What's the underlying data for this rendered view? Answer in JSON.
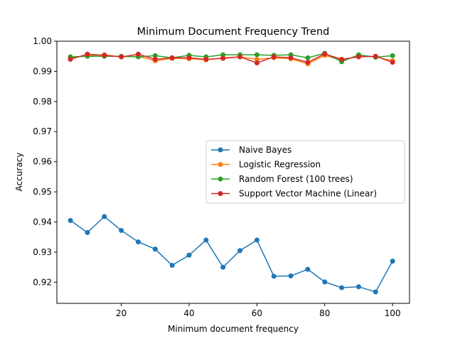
{
  "chart_data": {
    "type": "line",
    "title": "Minimum Document Frequency Trend",
    "xlabel": "Minimum document frequency",
    "ylabel": "Accuracy",
    "xlim": [
      1,
      105
    ],
    "ylim": [
      0.913,
      1.0
    ],
    "xticks": [
      20,
      40,
      60,
      80,
      100
    ],
    "yticks": [
      0.92,
      0.93,
      0.94,
      0.95,
      0.96,
      0.97,
      0.98,
      0.99,
      1.0
    ],
    "xtick_labels": [
      "20",
      "40",
      "60",
      "80",
      "100"
    ],
    "ytick_labels": [
      "0.92",
      "0.93",
      "0.94",
      "0.95",
      "0.96",
      "0.97",
      "0.98",
      "0.99",
      "1.00"
    ],
    "grid": false,
    "legend_position": "center-right",
    "x": [
      5,
      10,
      15,
      20,
      25,
      30,
      35,
      40,
      45,
      50,
      55,
      60,
      65,
      70,
      75,
      80,
      85,
      90,
      95,
      100
    ],
    "series": [
      {
        "name": "Naive Bayes",
        "color": "#1f77b4",
        "values": [
          0.9405,
          0.9365,
          0.9418,
          0.9372,
          0.9334,
          0.931,
          0.9256,
          0.929,
          0.934,
          0.925,
          0.9305,
          0.934,
          0.922,
          0.9221,
          0.9243,
          0.9201,
          0.9182,
          0.9185,
          0.9168,
          0.927
        ]
      },
      {
        "name": "Logistic Regression",
        "color": "#ff7f0e",
        "values": [
          0.9945,
          0.9952,
          0.9955,
          0.9948,
          0.995,
          0.9935,
          0.9943,
          0.9942,
          0.9938,
          0.9945,
          0.9948,
          0.994,
          0.9945,
          0.9942,
          0.9925,
          0.9953,
          0.9937,
          0.9951,
          0.9948,
          0.9935
        ]
      },
      {
        "name": "Random Forest (100 trees)",
        "color": "#2ca02c",
        "values": [
          0.9948,
          0.995,
          0.995,
          0.995,
          0.9948,
          0.9952,
          0.9945,
          0.9953,
          0.9948,
          0.9955,
          0.9955,
          0.9955,
          0.9953,
          0.9955,
          0.9945,
          0.996,
          0.9932,
          0.9955,
          0.9947,
          0.9952
        ]
      },
      {
        "name": "Support Vector Machine (Linear)",
        "color": "#d62728",
        "values": [
          0.994,
          0.9957,
          0.9953,
          0.9948,
          0.9957,
          0.994,
          0.9945,
          0.9945,
          0.994,
          0.9943,
          0.9948,
          0.9928,
          0.9948,
          0.9945,
          0.993,
          0.9958,
          0.994,
          0.9948,
          0.995,
          0.993
        ]
      }
    ]
  }
}
